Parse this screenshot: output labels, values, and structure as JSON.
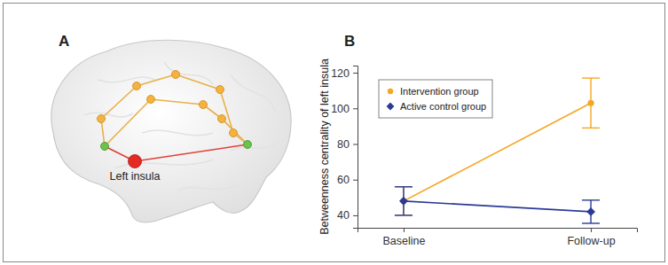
{
  "diagram": {
    "panel_label": "A",
    "highlight_label": "Left insula"
  },
  "chart_data": {
    "type": "line",
    "panel_label": "B",
    "y_label": "Betweenness centrality of left insula",
    "categories": [
      "Baseline",
      "Follow-up"
    ],
    "series": [
      {
        "name": "Intervention group",
        "color": "#f5a623",
        "marker": "circle",
        "values": [
          48,
          103
        ],
        "errors": [
          8,
          14
        ]
      },
      {
        "name": "Active control group",
        "color": "#2b3a97",
        "marker": "diamond",
        "values": [
          48,
          42
        ],
        "errors": [
          8,
          6.5
        ]
      }
    ],
    "ylim": [
      33,
      124
    ],
    "yticks": [
      40,
      60,
      80,
      100,
      120
    ],
    "legend": "upper left",
    "grid": false
  }
}
